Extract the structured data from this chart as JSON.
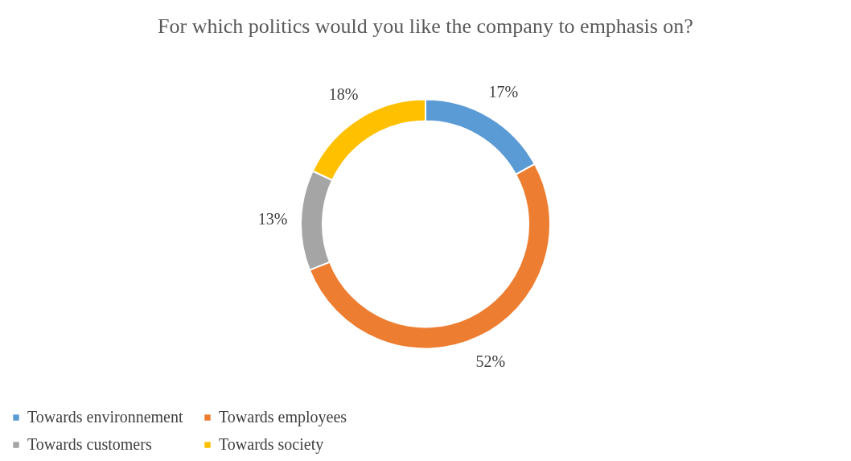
{
  "chart_data": {
    "type": "donut",
    "title": "For which politics would you like the company to emphasis on?",
    "categories": [
      "Towards environnement",
      "Towards employees",
      "Towards customers",
      "Towards society"
    ],
    "values": [
      17,
      52,
      13,
      18
    ],
    "colors": [
      "#5b9bd5",
      "#ed7d31",
      "#a5a5a5",
      "#ffc000"
    ],
    "value_labels": [
      "17%",
      "52%",
      "13%",
      "18%"
    ],
    "legend": "bottom"
  }
}
